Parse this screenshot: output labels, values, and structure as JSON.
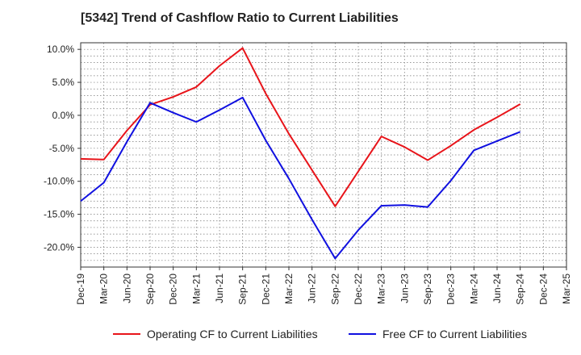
{
  "chart_data": {
    "type": "line",
    "title": "[5342]  Trend of Cashflow Ratio to Current Liabilities",
    "xlabel": "",
    "ylabel": "",
    "categories": [
      "Dec-19",
      "Mar-20",
      "Jun-20",
      "Sep-20",
      "Dec-20",
      "Mar-21",
      "Jun-21",
      "Sep-21",
      "Dec-21",
      "Mar-22",
      "Jun-22",
      "Sep-22",
      "Dec-22",
      "Mar-23",
      "Jun-23",
      "Sep-23",
      "Dec-23",
      "Mar-24",
      "Jun-24",
      "Sep-24",
      "Dec-24",
      "Mar-25"
    ],
    "ylim": [
      -23.0,
      11.0
    ],
    "yticks": [
      10.0,
      5.0,
      0.0,
      -5.0,
      -10.0,
      -15.0,
      -20.0
    ],
    "ytick_labels": [
      "10.0%",
      "5.0%",
      "0.0%",
      "-5.0%",
      "-10.0%",
      "-15.0%",
      "-20.0%"
    ],
    "grid": true,
    "legend_position": "bottom",
    "series": [
      {
        "name": "Operating CF to Current Liabilities",
        "color": "#e8141a",
        "values": [
          -6.6,
          -6.7,
          -2.3,
          1.6,
          2.8,
          4.3,
          7.5,
          10.2,
          3.3,
          -2.8,
          -8.3,
          -13.8,
          -8.5,
          -3.2,
          -4.8,
          -6.8,
          -4.6,
          -2.2,
          -0.3,
          1.7,
          null,
          null
        ]
      },
      {
        "name": "Free CF to Current Liabilities",
        "color": "#1010e0",
        "values": [
          -13.0,
          -10.2,
          -4.0,
          1.9,
          0.4,
          -1.0,
          0.8,
          2.7,
          -3.8,
          -9.6,
          -15.8,
          -21.7,
          -17.4,
          -13.7,
          -13.6,
          -13.9,
          -9.9,
          -5.3,
          -3.9,
          -2.5,
          null,
          null
        ]
      }
    ]
  }
}
